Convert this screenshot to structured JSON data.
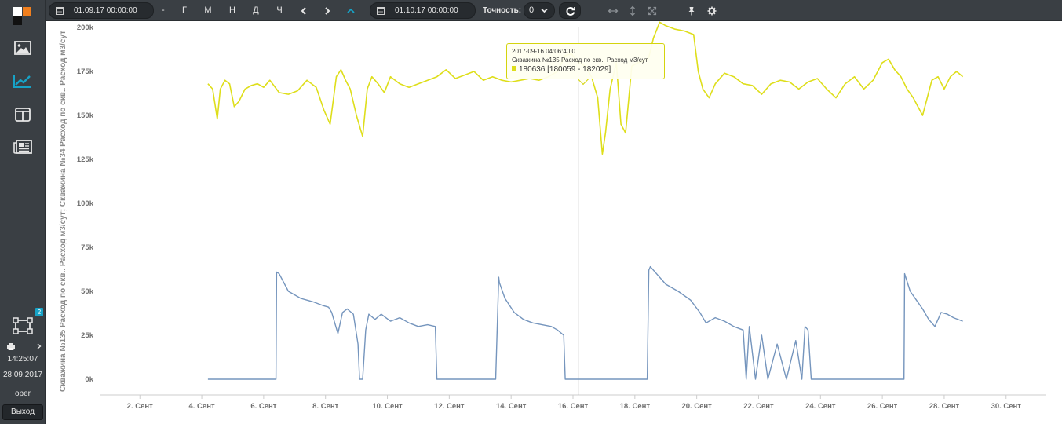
{
  "toolbar": {
    "date_from": "01.09.17 00:00:00",
    "dash": "-",
    "period_buttons": [
      "Г",
      "М",
      "Н",
      "Д",
      "Ч"
    ],
    "date_to": "01.10.17 00:00:00",
    "precision_label": "Точность:",
    "precision_value": "0"
  },
  "sidebar": {
    "badge": "2",
    "time": "14:25:07",
    "date": "28.09.2017",
    "user": "oper",
    "logout": "Выход"
  },
  "colors": {
    "series_yellow": "#dede1a",
    "series_blue": "#7595bd",
    "accent": "#17a2c6",
    "panel": "#3a3f44"
  },
  "tooltip": {
    "timestamp": "2017-09-16 04:06:40.0",
    "series": "Скважина №135 Расход по скв.. Расход м3/сут",
    "value": "180636 [180059 - 182029]"
  },
  "chart_data": {
    "type": "line",
    "ylabel": "Скважина №135 Расход по скв.. Расход м3/сут; Скважина №34 Расход по скв.. Расход м3/сут",
    "ylim": [
      0,
      200000
    ],
    "yticks": [
      0,
      25000,
      50000,
      75000,
      100000,
      125000,
      150000,
      175000,
      200000
    ],
    "ytick_labels": [
      "0k",
      "25k",
      "50k",
      "75k",
      "100k",
      "125k",
      "150k",
      "175k",
      "200k"
    ],
    "xlim": [
      0.7,
      31.3
    ],
    "xticks": [
      2,
      4,
      6,
      8,
      10,
      12,
      14,
      16,
      18,
      20,
      22,
      24,
      26,
      28,
      30
    ],
    "xtick_labels": [
      "2. Сент",
      "4. Сент",
      "6. Сент",
      "8. Сент",
      "10. Сент",
      "12. Сент",
      "14. Сент",
      "16. Сент",
      "18. Сент",
      "20. Сент",
      "22. Сент",
      "24. Сент",
      "26. Сент",
      "28. Сент",
      "30. Сент"
    ],
    "crosshair_x": 16.17,
    "grid": false,
    "series": [
      {
        "name": "Скважина №135 Расход по скв.. Расход м3/сут",
        "color": "#dede1a",
        "x": [
          4.2,
          4.35,
          4.5,
          4.6,
          4.75,
          4.9,
          5.05,
          5.2,
          5.4,
          5.6,
          5.8,
          6.0,
          6.2,
          6.5,
          6.8,
          7.1,
          7.4,
          7.7,
          7.95,
          8.15,
          8.35,
          8.5,
          8.65,
          8.8,
          9.0,
          9.2,
          9.35,
          9.5,
          9.7,
          9.9,
          10.1,
          10.4,
          10.7,
          11.0,
          11.3,
          11.6,
          11.9,
          12.2,
          12.5,
          12.8,
          13.1,
          13.4,
          13.7,
          14.0,
          14.3,
          14.6,
          14.9,
          15.2,
          15.5,
          15.75,
          15.95,
          16.15,
          16.4,
          16.6,
          16.8,
          16.95,
          17.05,
          17.2,
          17.4,
          17.55,
          17.7,
          17.9,
          18.1,
          18.3,
          18.45,
          18.6,
          18.8,
          19.0,
          19.3,
          19.6,
          19.9,
          20.05,
          20.2,
          20.4,
          20.6,
          20.9,
          21.2,
          21.5,
          21.8,
          22.1,
          22.4,
          22.7,
          23.0,
          23.3,
          23.6,
          23.9,
          24.2,
          24.5,
          24.8,
          25.1,
          25.4,
          25.7,
          26.0,
          26.2,
          26.4,
          26.6,
          26.8,
          27.0,
          27.3,
          27.6,
          27.8,
          28.0,
          28.2,
          28.4,
          28.6
        ],
        "y": [
          168000,
          165000,
          148000,
          165000,
          170000,
          168000,
          155000,
          158000,
          165000,
          167000,
          168000,
          166000,
          170000,
          163000,
          162000,
          164000,
          170000,
          166000,
          153000,
          145000,
          172000,
          176000,
          170000,
          165000,
          150000,
          138000,
          165000,
          172000,
          168000,
          163000,
          172000,
          168000,
          166000,
          168000,
          170000,
          172000,
          176000,
          171000,
          173000,
          175000,
          170000,
          172000,
          170000,
          169000,
          170000,
          171000,
          170000,
          172000,
          175000,
          184000,
          185000,
          180636,
          178000,
          172000,
          160000,
          128000,
          140000,
          165000,
          180000,
          145000,
          140000,
          178000,
          180000,
          181000,
          183000,
          194000,
          203000,
          201000,
          199000,
          198000,
          196000,
          175000,
          165000,
          160000,
          168000,
          174000,
          172000,
          168000,
          167000,
          162000,
          168000,
          170000,
          169000,
          165000,
          169000,
          171000,
          165000,
          160000,
          168000,
          172000,
          165000,
          170000,
          180000,
          182000,
          176000,
          172000,
          165000,
          160000,
          150000,
          170000,
          172000,
          165000,
          172000,
          175000,
          172000
        ]
      },
      {
        "name": "Скважина №34 Расход по скв.. Расход м3/сут",
        "color": "#7595bd",
        "x": [
          4.2,
          5.5,
          6.4,
          6.42,
          6.5,
          6.8,
          7.2,
          7.6,
          7.9,
          8.1,
          8.2,
          8.3,
          8.4,
          8.55,
          8.7,
          8.9,
          9.05,
          9.1,
          9.2,
          9.3,
          9.4,
          9.6,
          9.8,
          10.1,
          10.4,
          10.7,
          11.0,
          11.3,
          11.55,
          11.6,
          12.5,
          13.5,
          13.6,
          13.62,
          13.8,
          14.1,
          14.4,
          14.7,
          15.0,
          15.3,
          15.5,
          15.7,
          15.75,
          16.5,
          17.5,
          18.4,
          18.45,
          18.5,
          18.7,
          19.0,
          19.4,
          19.8,
          20.1,
          20.3,
          20.6,
          20.9,
          21.2,
          21.5,
          21.6,
          21.7,
          21.9,
          22.1,
          22.3,
          22.6,
          22.9,
          23.2,
          23.4,
          23.5,
          23.6,
          23.7,
          24.5,
          25.5,
          26.7,
          26.72,
          26.9,
          27.1,
          27.3,
          27.5,
          27.7,
          27.9,
          28.1,
          28.3,
          28.6
        ],
        "y": [
          0,
          0,
          0,
          61000,
          60000,
          50000,
          46000,
          44000,
          42000,
          41000,
          38000,
          32000,
          26000,
          38000,
          40000,
          37000,
          20000,
          0,
          0,
          28000,
          37000,
          34000,
          37000,
          33000,
          35000,
          32000,
          30000,
          31000,
          30000,
          0,
          0,
          0,
          58000,
          55000,
          46000,
          38000,
          34000,
          32000,
          31000,
          30000,
          28000,
          25000,
          0,
          0,
          0,
          0,
          62000,
          64000,
          60000,
          54000,
          50000,
          45000,
          38000,
          32000,
          35000,
          33000,
          30000,
          28000,
          0,
          30000,
          0,
          25000,
          0,
          20000,
          0,
          22000,
          0,
          30000,
          28000,
          0,
          0,
          0,
          0,
          60000,
          50000,
          45000,
          40000,
          34000,
          30000,
          38000,
          37000,
          35000,
          33000
        ]
      }
    ]
  }
}
